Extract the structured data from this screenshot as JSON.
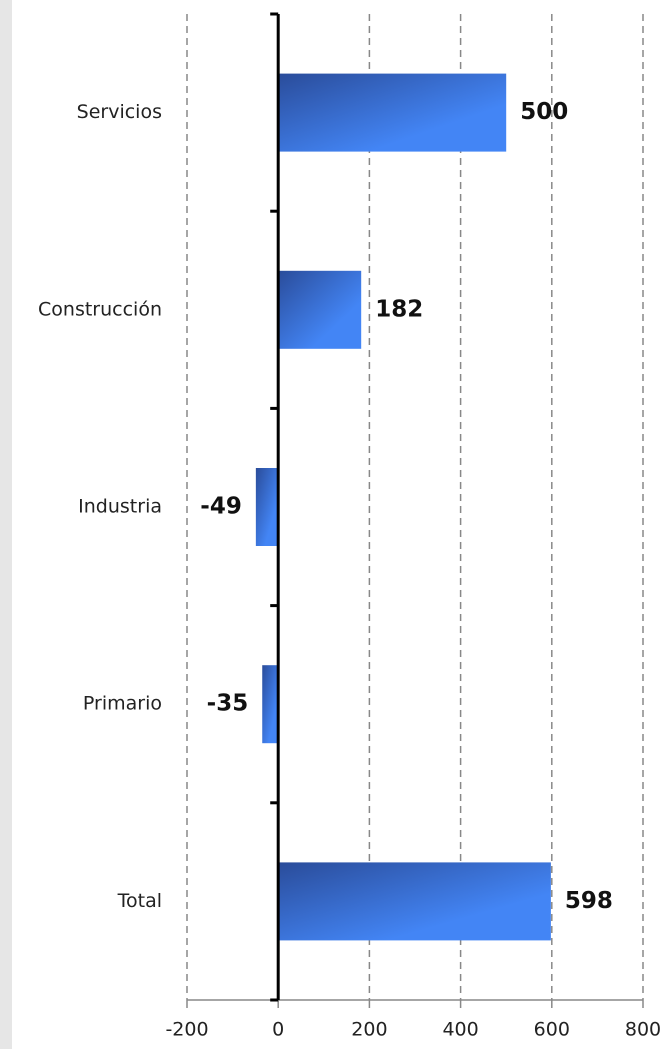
{
  "chart_data": {
    "type": "barh",
    "categories": [
      "Servicios",
      "Construcción",
      "Industria",
      "Primario",
      "Total"
    ],
    "values": [
      500,
      182,
      -49,
      -35,
      598
    ],
    "color": "#4385f5",
    "xlim": [
      -200,
      800
    ],
    "xticks": [
      -200,
      0,
      200,
      400,
      600,
      800
    ],
    "grid": true
  }
}
